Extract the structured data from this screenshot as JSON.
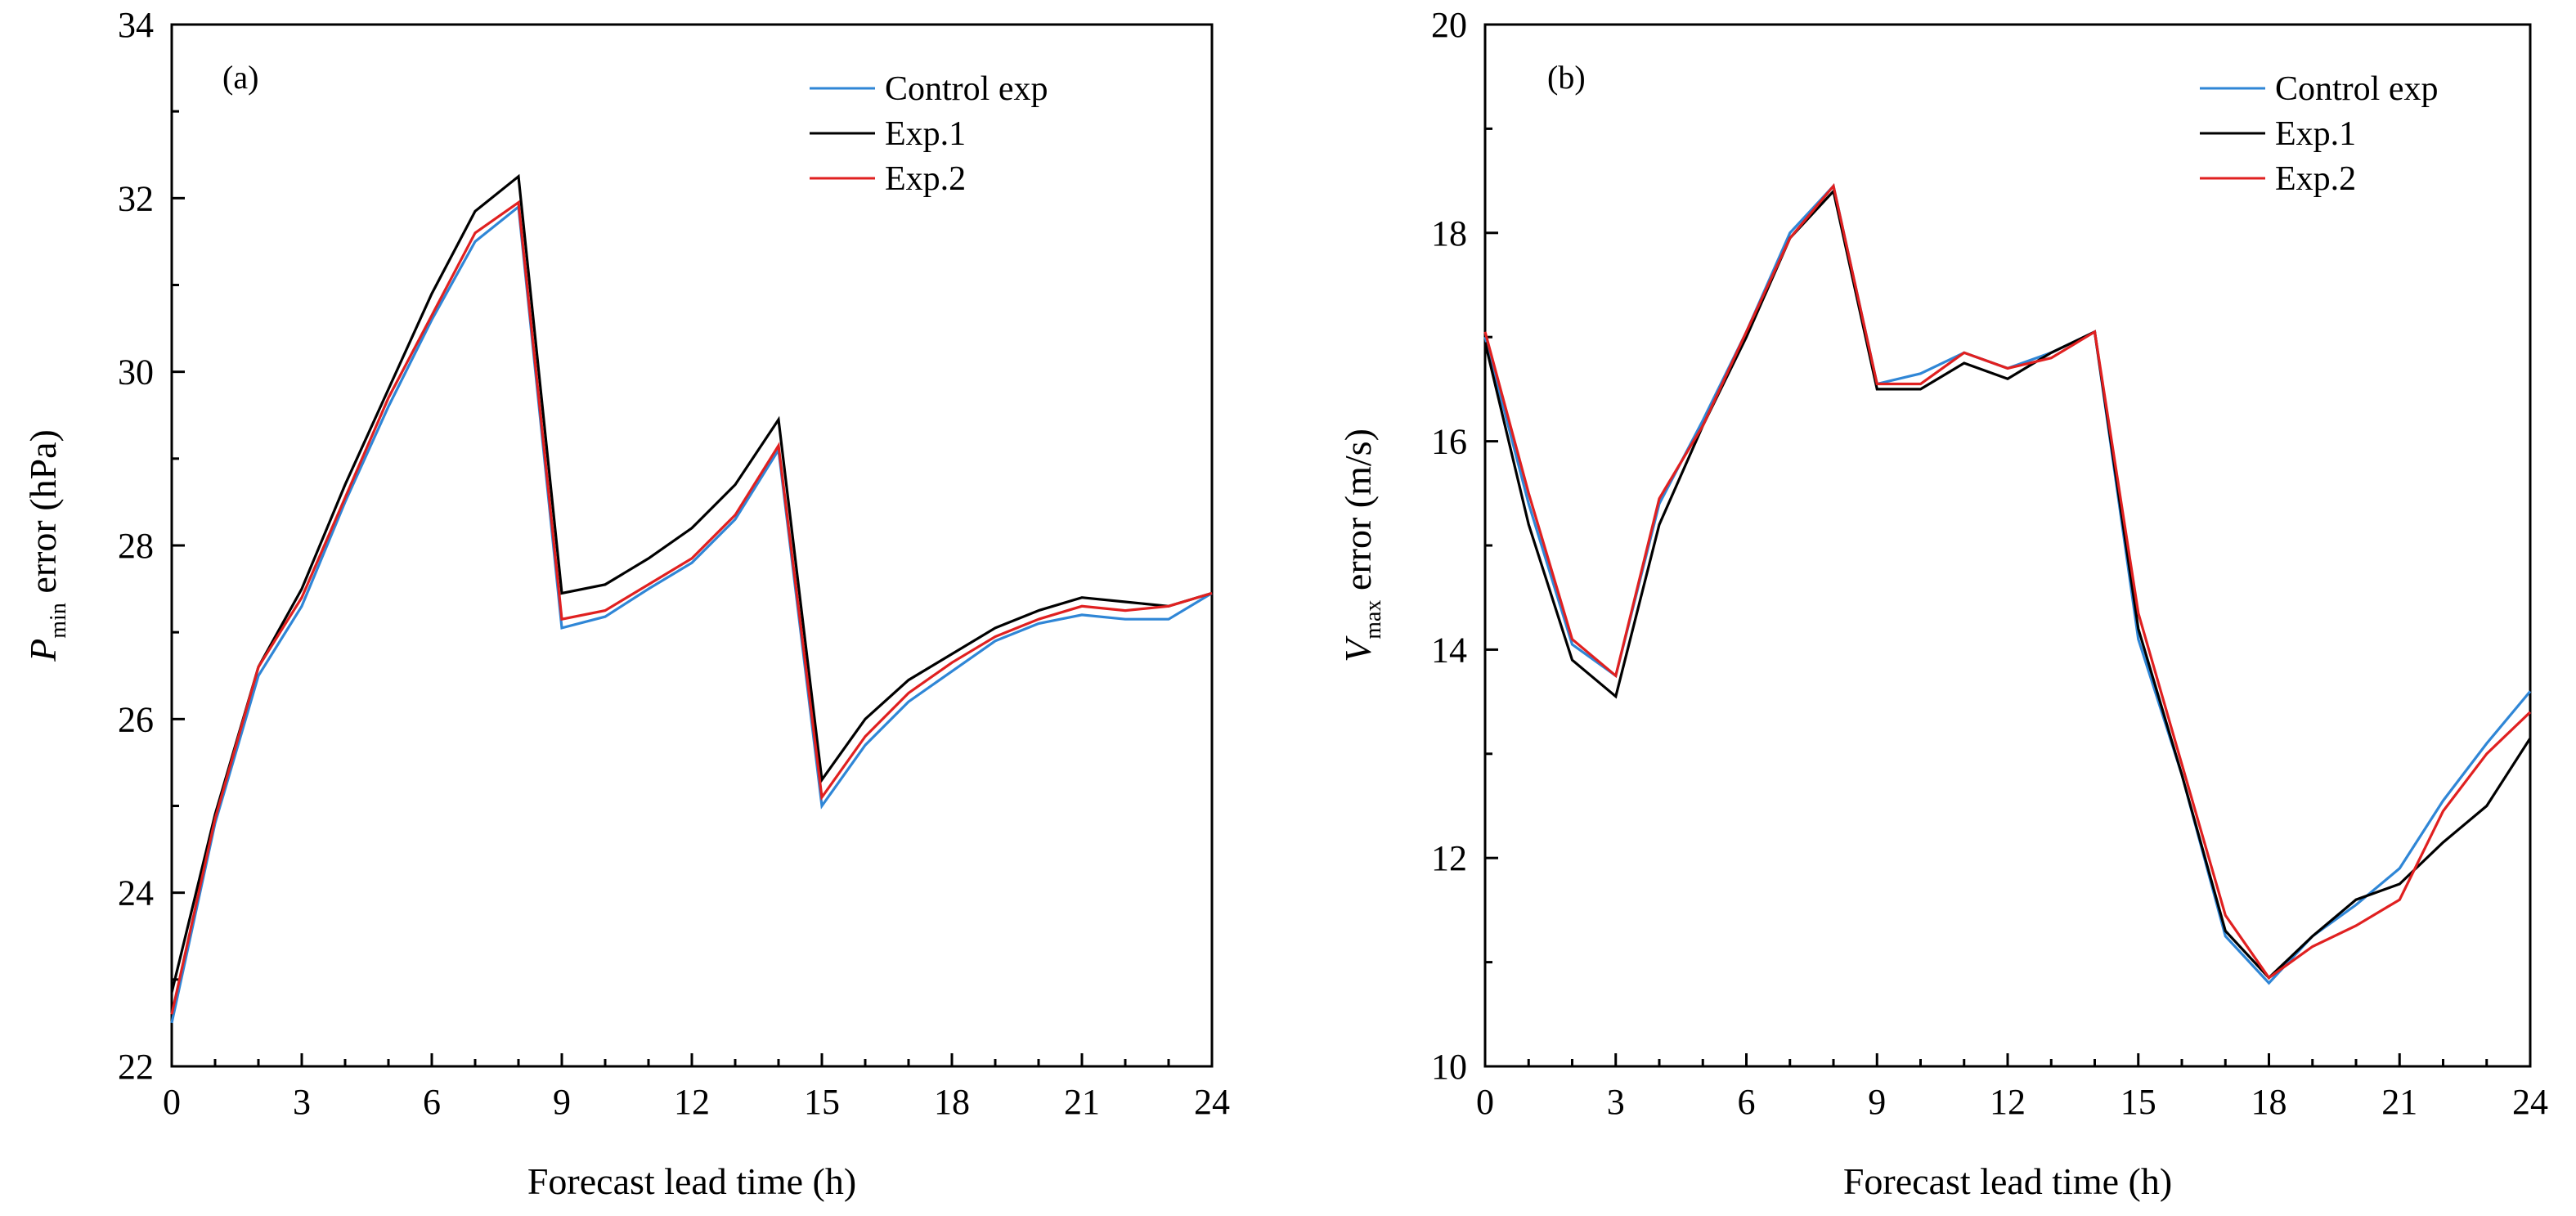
{
  "chart_data": [
    {
      "type": "line",
      "panel_label": "(a)",
      "xlabel": "Forecast lead time (h)",
      "ylabel_main": "P",
      "ylabel_sub": "min",
      "ylabel_rest": " error (hPa)",
      "xlim": [
        0,
        24
      ],
      "ylim": [
        22,
        34
      ],
      "xticks": [
        0,
        3,
        6,
        9,
        12,
        15,
        18,
        21,
        24
      ],
      "yticks": [
        22,
        24,
        26,
        28,
        30,
        32,
        34
      ],
      "x": [
        0,
        1,
        2,
        3,
        4,
        5,
        6,
        7,
        8,
        9,
        10,
        11,
        12,
        13,
        14,
        15,
        16,
        17,
        18,
        19,
        20,
        21,
        22,
        23,
        24
      ],
      "legend_position": "top-right",
      "series": [
        {
          "name": "Control exp",
          "color": "#2f86d6",
          "values": [
            22.5,
            24.8,
            26.5,
            27.3,
            28.5,
            29.6,
            30.6,
            31.5,
            31.9,
            27.05,
            27.18,
            27.5,
            27.8,
            28.3,
            29.1,
            25.0,
            25.7,
            26.2,
            26.55,
            26.9,
            27.1,
            27.2,
            27.15,
            27.15,
            27.45
          ]
        },
        {
          "name": "Exp.1",
          "color": "#000000",
          "values": [
            22.85,
            24.9,
            26.6,
            27.5,
            28.7,
            29.8,
            30.9,
            31.85,
            32.25,
            27.45,
            27.55,
            27.85,
            28.2,
            28.7,
            29.45,
            25.3,
            26.0,
            26.45,
            26.75,
            27.05,
            27.25,
            27.4,
            27.35,
            27.3,
            27.45
          ]
        },
        {
          "name": "Exp.2",
          "color": "#e02020",
          "values": [
            22.6,
            24.85,
            26.6,
            27.4,
            28.55,
            29.7,
            30.65,
            31.6,
            31.95,
            27.15,
            27.25,
            27.55,
            27.85,
            28.35,
            29.15,
            25.1,
            25.8,
            26.3,
            26.65,
            26.95,
            27.15,
            27.3,
            27.25,
            27.3,
            27.45
          ]
        }
      ]
    },
    {
      "type": "line",
      "panel_label": "(b)",
      "xlabel": "Forecast lead time (h)",
      "ylabel_main": "V",
      "ylabel_sub": "max",
      "ylabel_rest": " error (m/s)",
      "xlim": [
        0,
        24
      ],
      "ylim": [
        10,
        20
      ],
      "xticks": [
        0,
        3,
        6,
        9,
        12,
        15,
        18,
        21,
        24
      ],
      "yticks": [
        10,
        12,
        14,
        16,
        18,
        20
      ],
      "x": [
        0,
        1,
        2,
        3,
        4,
        5,
        6,
        7,
        8,
        9,
        10,
        11,
        12,
        13,
        14,
        15,
        16,
        17,
        18,
        19,
        20,
        21,
        22,
        23,
        24
      ],
      "legend_position": "top-right",
      "series": [
        {
          "name": "Control exp",
          "color": "#2f86d6",
          "values": [
            17.0,
            15.4,
            14.05,
            13.75,
            15.4,
            16.2,
            17.05,
            18.0,
            18.45,
            16.55,
            16.65,
            16.85,
            16.7,
            16.85,
            17.05,
            14.1,
            12.8,
            11.25,
            10.8,
            11.25,
            11.55,
            11.9,
            12.55,
            13.1,
            13.6
          ]
        },
        {
          "name": "Exp.1",
          "color": "#000000",
          "values": [
            16.95,
            15.2,
            13.9,
            13.55,
            15.2,
            16.15,
            17.0,
            17.95,
            18.4,
            16.5,
            16.5,
            16.75,
            16.6,
            16.85,
            17.05,
            14.2,
            12.8,
            11.3,
            10.85,
            11.25,
            11.6,
            11.75,
            12.15,
            12.5,
            13.15
          ]
        },
        {
          "name": "Exp.2",
          "color": "#e02020",
          "values": [
            17.05,
            15.5,
            14.1,
            13.75,
            15.45,
            16.15,
            17.05,
            17.95,
            18.45,
            16.55,
            16.55,
            16.85,
            16.7,
            16.8,
            17.05,
            14.35,
            12.9,
            11.45,
            10.85,
            11.15,
            11.35,
            11.6,
            12.45,
            13.0,
            13.4
          ]
        }
      ]
    }
  ]
}
